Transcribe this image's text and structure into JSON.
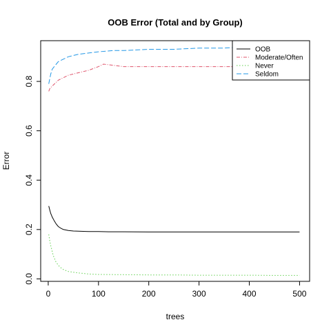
{
  "chart_data": {
    "type": "line",
    "title": "OOB Error (Total and by Group)",
    "xlabel": "trees",
    "ylabel": "Error",
    "xlim": [
      0,
      500
    ],
    "ylim": [
      0,
      0.95
    ],
    "xticks": [
      0,
      100,
      200,
      300,
      400,
      500
    ],
    "yticks": [
      0.0,
      0.2,
      0.4,
      0.6,
      0.8
    ],
    "xtick_labels": [
      "0",
      "100",
      "200",
      "300",
      "400",
      "500"
    ],
    "ytick_labels": [
      "0.0",
      "0.2",
      "0.4",
      "0.6",
      "0.8"
    ],
    "legend_position": "top-right",
    "series": [
      {
        "name": "OOB",
        "color": "#000000",
        "dash": "solid",
        "x": [
          1,
          3,
          5,
          8,
          12,
          16,
          20,
          25,
          30,
          40,
          50,
          60,
          80,
          100,
          120,
          150,
          200,
          250,
          300,
          350,
          400,
          450,
          500
        ],
        "y": [
          0.295,
          0.28,
          0.265,
          0.25,
          0.235,
          0.222,
          0.212,
          0.205,
          0.2,
          0.196,
          0.194,
          0.193,
          0.192,
          0.192,
          0.191,
          0.191,
          0.19,
          0.19,
          0.19,
          0.19,
          0.19,
          0.19,
          0.19
        ]
      },
      {
        "name": "Moderate/Often",
        "color": "#DF536B",
        "dash": "dashdot",
        "x": [
          1,
          3,
          5,
          10,
          15,
          20,
          30,
          40,
          50,
          60,
          80,
          100,
          110,
          130,
          150,
          200,
          250,
          300,
          350,
          400,
          450,
          500
        ],
        "y": [
          0.76,
          0.77,
          0.775,
          0.785,
          0.795,
          0.805,
          0.815,
          0.825,
          0.83,
          0.835,
          0.845,
          0.86,
          0.87,
          0.865,
          0.86,
          0.86,
          0.86,
          0.86,
          0.86,
          0.86,
          0.86,
          0.86
        ]
      },
      {
        "name": "Never",
        "color": "#61D04F",
        "dash": "dotted",
        "x": [
          1,
          3,
          5,
          8,
          10,
          15,
          20,
          25,
          30,
          40,
          50,
          60,
          80,
          100,
          150,
          200,
          250,
          300,
          350,
          400,
          450,
          500
        ],
        "y": [
          0.18,
          0.155,
          0.135,
          0.11,
          0.095,
          0.07,
          0.055,
          0.045,
          0.038,
          0.03,
          0.027,
          0.024,
          0.02,
          0.018,
          0.017,
          0.016,
          0.016,
          0.015,
          0.015,
          0.015,
          0.014,
          0.014
        ]
      },
      {
        "name": "Seldom",
        "color": "#2297E6",
        "dash": "longdash",
        "x": [
          1,
          3,
          5,
          8,
          12,
          16,
          20,
          30,
          40,
          50,
          60,
          80,
          100,
          130,
          150,
          200,
          250,
          300,
          350,
          400,
          450,
          500
        ],
        "y": [
          0.79,
          0.81,
          0.83,
          0.85,
          0.86,
          0.87,
          0.88,
          0.89,
          0.9,
          0.905,
          0.91,
          0.915,
          0.92,
          0.925,
          0.925,
          0.93,
          0.93,
          0.935,
          0.935,
          0.94,
          0.94,
          0.94
        ]
      }
    ]
  }
}
